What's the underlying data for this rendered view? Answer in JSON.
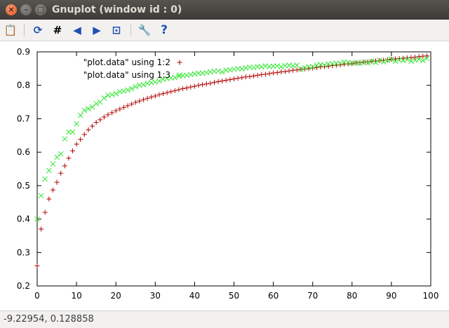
{
  "window": {
    "title": "Gnuplot (window id : 0)"
  },
  "titlebar_buttons": {
    "close": "×",
    "minimize": "–",
    "maximize": "□"
  },
  "toolbar": {
    "icons": [
      "clipboard-icon",
      "replot-icon",
      "grid-icon",
      "zoom-previous-icon",
      "zoom-next-icon",
      "autoscale-icon",
      "settings-icon",
      "help-icon"
    ],
    "glyphs": {
      "clipboard": "📋",
      "replot": "⟳",
      "grid": "#",
      "prev": "◀",
      "next": "▶",
      "autoscale": "⊡",
      "settings": "🔧",
      "help": "?"
    }
  },
  "status": {
    "coords": "-9.22954,  0.128858"
  },
  "colors": {
    "series1": "#b00000",
    "series2": "#33e533"
  },
  "chart_data": {
    "type": "scatter",
    "xlim": [
      0,
      100
    ],
    "ylim": [
      0.2,
      0.9
    ],
    "xticks": [
      0,
      10,
      20,
      30,
      40,
      50,
      60,
      70,
      80,
      90,
      100
    ],
    "yticks": [
      0.2,
      0.3,
      0.4,
      0.5,
      0.6,
      0.7,
      0.8,
      0.9
    ],
    "xtick_labels": [
      "0",
      "10",
      "20",
      "30",
      "40",
      "50",
      "60",
      "70",
      "80",
      "90",
      "100"
    ],
    "ytick_labels": [
      "0.2",
      "0.3",
      "0.4",
      "0.5",
      "0.6",
      "0.7",
      "0.8",
      "0.9"
    ],
    "legend_position": "top-left",
    "grid": false,
    "series": [
      {
        "name": "\"plot.data\" using 1:2",
        "marker": "plus",
        "color": "#b00000",
        "x": [
          0,
          1,
          2,
          3,
          4,
          5,
          6,
          7,
          8,
          9,
          10,
          11,
          12,
          13,
          14,
          15,
          16,
          17,
          18,
          19,
          20,
          21,
          22,
          23,
          24,
          25,
          26,
          27,
          28,
          29,
          30,
          31,
          32,
          33,
          34,
          35,
          36,
          37,
          38,
          39,
          40,
          41,
          42,
          43,
          44,
          45,
          46,
          47,
          48,
          49,
          50,
          51,
          52,
          53,
          54,
          55,
          56,
          57,
          58,
          59,
          60,
          61,
          62,
          63,
          64,
          65,
          66,
          67,
          68,
          69,
          70,
          71,
          72,
          73,
          74,
          75,
          76,
          77,
          78,
          79,
          80,
          81,
          82,
          83,
          84,
          85,
          86,
          87,
          88,
          89,
          90,
          91,
          92,
          93,
          94,
          95,
          96,
          97,
          98,
          99
        ],
        "y": [
          0.26,
          0.37,
          0.42,
          0.46,
          0.487,
          0.51,
          0.537,
          0.559,
          0.582,
          0.604,
          0.624,
          0.638,
          0.653,
          0.667,
          0.678,
          0.689,
          0.697,
          0.705,
          0.712,
          0.718,
          0.724,
          0.729,
          0.734,
          0.739,
          0.744,
          0.749,
          0.753,
          0.757,
          0.761,
          0.765,
          0.768,
          0.772,
          0.775,
          0.778,
          0.781,
          0.784,
          0.787,
          0.79,
          0.792,
          0.795,
          0.797,
          0.8,
          0.802,
          0.804,
          0.806,
          0.809,
          0.811,
          0.813,
          0.815,
          0.817,
          0.819,
          0.821,
          0.823,
          0.825,
          0.826,
          0.828,
          0.83,
          0.832,
          0.833,
          0.835,
          0.837,
          0.838,
          0.84,
          0.841,
          0.843,
          0.845,
          0.846,
          0.848,
          0.849,
          0.85,
          0.852,
          0.853,
          0.855,
          0.856,
          0.857,
          0.859,
          0.86,
          0.861,
          0.863,
          0.864,
          0.865,
          0.867,
          0.868,
          0.869,
          0.87,
          0.872,
          0.873,
          0.874,
          0.875,
          0.876,
          0.878,
          0.879,
          0.88,
          0.881,
          0.882,
          0.883,
          0.884,
          0.886,
          0.887,
          0.888
        ]
      },
      {
        "name": "\"plot.data\" using 1:3",
        "marker": "cross",
        "color": "#33e533",
        "x": [
          0,
          1,
          2,
          3,
          4,
          5,
          6,
          7,
          8,
          9,
          10,
          11,
          12,
          13,
          14,
          15,
          16,
          17,
          18,
          19,
          20,
          21,
          22,
          23,
          24,
          25,
          26,
          27,
          28,
          29,
          30,
          31,
          32,
          33,
          34,
          35,
          36,
          37,
          38,
          39,
          40,
          41,
          42,
          43,
          44,
          45,
          46,
          47,
          48,
          49,
          50,
          51,
          52,
          53,
          54,
          55,
          56,
          57,
          58,
          59,
          60,
          61,
          62,
          63,
          64,
          65,
          66,
          67,
          68,
          69,
          70,
          71,
          72,
          73,
          74,
          75,
          76,
          77,
          78,
          79,
          80,
          81,
          82,
          83,
          84,
          85,
          86,
          87,
          88,
          89,
          90,
          91,
          92,
          93,
          94,
          95,
          96,
          97,
          98,
          99
        ],
        "y": [
          0.4,
          0.47,
          0.52,
          0.545,
          0.565,
          0.585,
          0.595,
          0.64,
          0.66,
          0.66,
          0.685,
          0.71,
          0.725,
          0.73,
          0.735,
          0.745,
          0.75,
          0.762,
          0.77,
          0.772,
          0.775,
          0.781,
          0.783,
          0.786,
          0.79,
          0.796,
          0.8,
          0.802,
          0.806,
          0.808,
          0.81,
          0.813,
          0.818,
          0.82,
          0.822,
          0.823,
          0.827,
          0.829,
          0.83,
          0.832,
          0.834,
          0.836,
          0.836,
          0.838,
          0.84,
          0.842,
          0.843,
          0.84,
          0.845,
          0.846,
          0.848,
          0.85,
          0.849,
          0.852,
          0.854,
          0.853,
          0.856,
          0.855,
          0.858,
          0.856,
          0.857,
          0.858,
          0.855,
          0.859,
          0.86,
          0.858,
          0.86,
          0.848,
          0.852,
          0.856,
          0.855,
          0.86,
          0.862,
          0.86,
          0.864,
          0.865,
          0.866,
          0.865,
          0.87,
          0.868,
          0.866,
          0.868,
          0.865,
          0.87,
          0.867,
          0.872,
          0.868,
          0.875,
          0.87,
          0.874,
          0.878,
          0.872,
          0.876,
          0.874,
          0.878,
          0.872,
          0.875,
          0.878,
          0.874,
          0.88
        ]
      }
    ]
  }
}
